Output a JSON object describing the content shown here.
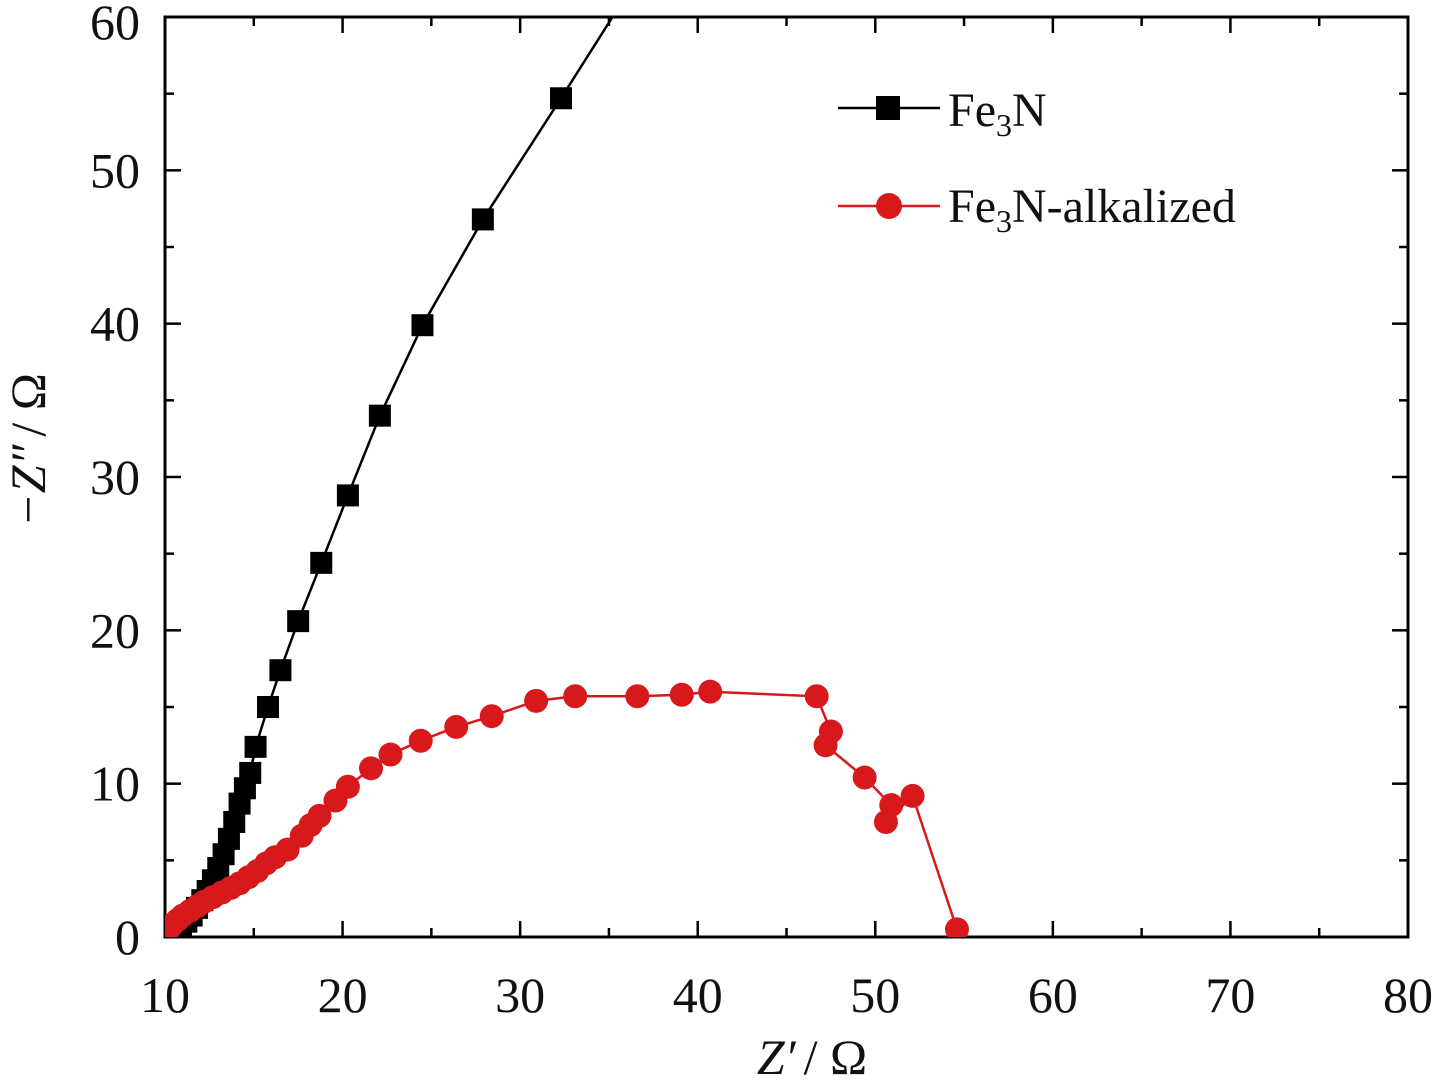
{
  "chart_data": {
    "type": "scatter",
    "title": "",
    "xlabel": {
      "var": "Z′",
      "unit": "/ Ω"
    },
    "ylabel": {
      "var": "−Z″",
      "unit": "/ Ω"
    },
    "xlim": [
      10,
      80
    ],
    "ylim": [
      0,
      60
    ],
    "xticks": [
      10,
      20,
      30,
      40,
      50,
      60,
      70,
      80
    ],
    "yticks": [
      0,
      10,
      20,
      30,
      40,
      50,
      60
    ],
    "xtick_labels": [
      "10",
      "20",
      "30",
      "40",
      "50",
      "60",
      "70",
      "80"
    ],
    "ytick_labels": [
      "0",
      "10",
      "20",
      "30",
      "40",
      "50",
      "60"
    ],
    "legend_position": "top-right",
    "series": [
      {
        "name": "Fe3N",
        "legend": {
          "base": "Fe",
          "sub": "3",
          "rest": "N"
        },
        "color": "#000000",
        "marker": "square",
        "line_to": [
          35.2,
          60
        ],
        "points": [
          [
            10.3,
            0.1
          ],
          [
            10.6,
            0.3
          ],
          [
            10.9,
            0.6
          ],
          [
            11.2,
            1.0
          ],
          [
            11.5,
            1.4
          ],
          [
            11.8,
            1.9
          ],
          [
            12.1,
            2.4
          ],
          [
            12.4,
            3.0
          ],
          [
            12.7,
            3.7
          ],
          [
            13.0,
            4.5
          ],
          [
            13.3,
            5.4
          ],
          [
            13.6,
            6.4
          ],
          [
            13.9,
            7.5
          ],
          [
            14.2,
            8.7
          ],
          [
            14.5,
            9.7
          ],
          [
            14.8,
            10.7
          ],
          [
            15.1,
            12.4
          ],
          [
            15.8,
            15.0
          ],
          [
            16.5,
            17.4
          ],
          [
            17.5,
            20.6
          ],
          [
            18.8,
            24.4
          ],
          [
            20.3,
            28.8
          ],
          [
            22.1,
            34.0
          ],
          [
            24.5,
            39.9
          ],
          [
            27.9,
            46.8
          ],
          [
            32.3,
            54.7
          ]
        ]
      },
      {
        "name": "Fe3N-alkalized",
        "legend": {
          "base": "Fe",
          "sub": "3",
          "rest": "N-alkalized"
        },
        "color": "#d7191c",
        "marker": "circle",
        "points": [
          [
            10.2,
            0.5
          ],
          [
            10.4,
            0.8
          ],
          [
            10.7,
            1.1
          ],
          [
            11.0,
            1.4
          ],
          [
            11.4,
            1.7
          ],
          [
            11.8,
            2.0
          ],
          [
            12.2,
            2.3
          ],
          [
            12.7,
            2.6
          ],
          [
            13.2,
            2.9
          ],
          [
            13.7,
            3.2
          ],
          [
            14.2,
            3.5
          ],
          [
            14.7,
            3.9
          ],
          [
            15.2,
            4.3
          ],
          [
            15.7,
            4.8
          ],
          [
            16.2,
            5.2
          ],
          [
            16.9,
            5.7
          ],
          [
            17.7,
            6.6
          ],
          [
            18.2,
            7.3
          ],
          [
            18.7,
            7.9
          ],
          [
            19.6,
            8.9
          ],
          [
            20.3,
            9.8
          ],
          [
            21.6,
            11.0
          ],
          [
            22.7,
            11.9
          ],
          [
            24.4,
            12.8
          ],
          [
            26.4,
            13.7
          ],
          [
            28.4,
            14.4
          ],
          [
            30.9,
            15.4
          ],
          [
            33.1,
            15.7
          ],
          [
            36.6,
            15.7
          ],
          [
            39.1,
            15.8
          ],
          [
            40.7,
            16.0
          ],
          [
            46.7,
            15.7
          ],
          [
            47.5,
            13.4
          ],
          [
            47.2,
            12.5
          ],
          [
            49.4,
            10.4
          ],
          [
            50.9,
            8.6
          ],
          [
            50.6,
            7.5
          ],
          [
            52.1,
            9.2
          ],
          [
            54.6,
            0.5
          ]
        ]
      }
    ]
  }
}
